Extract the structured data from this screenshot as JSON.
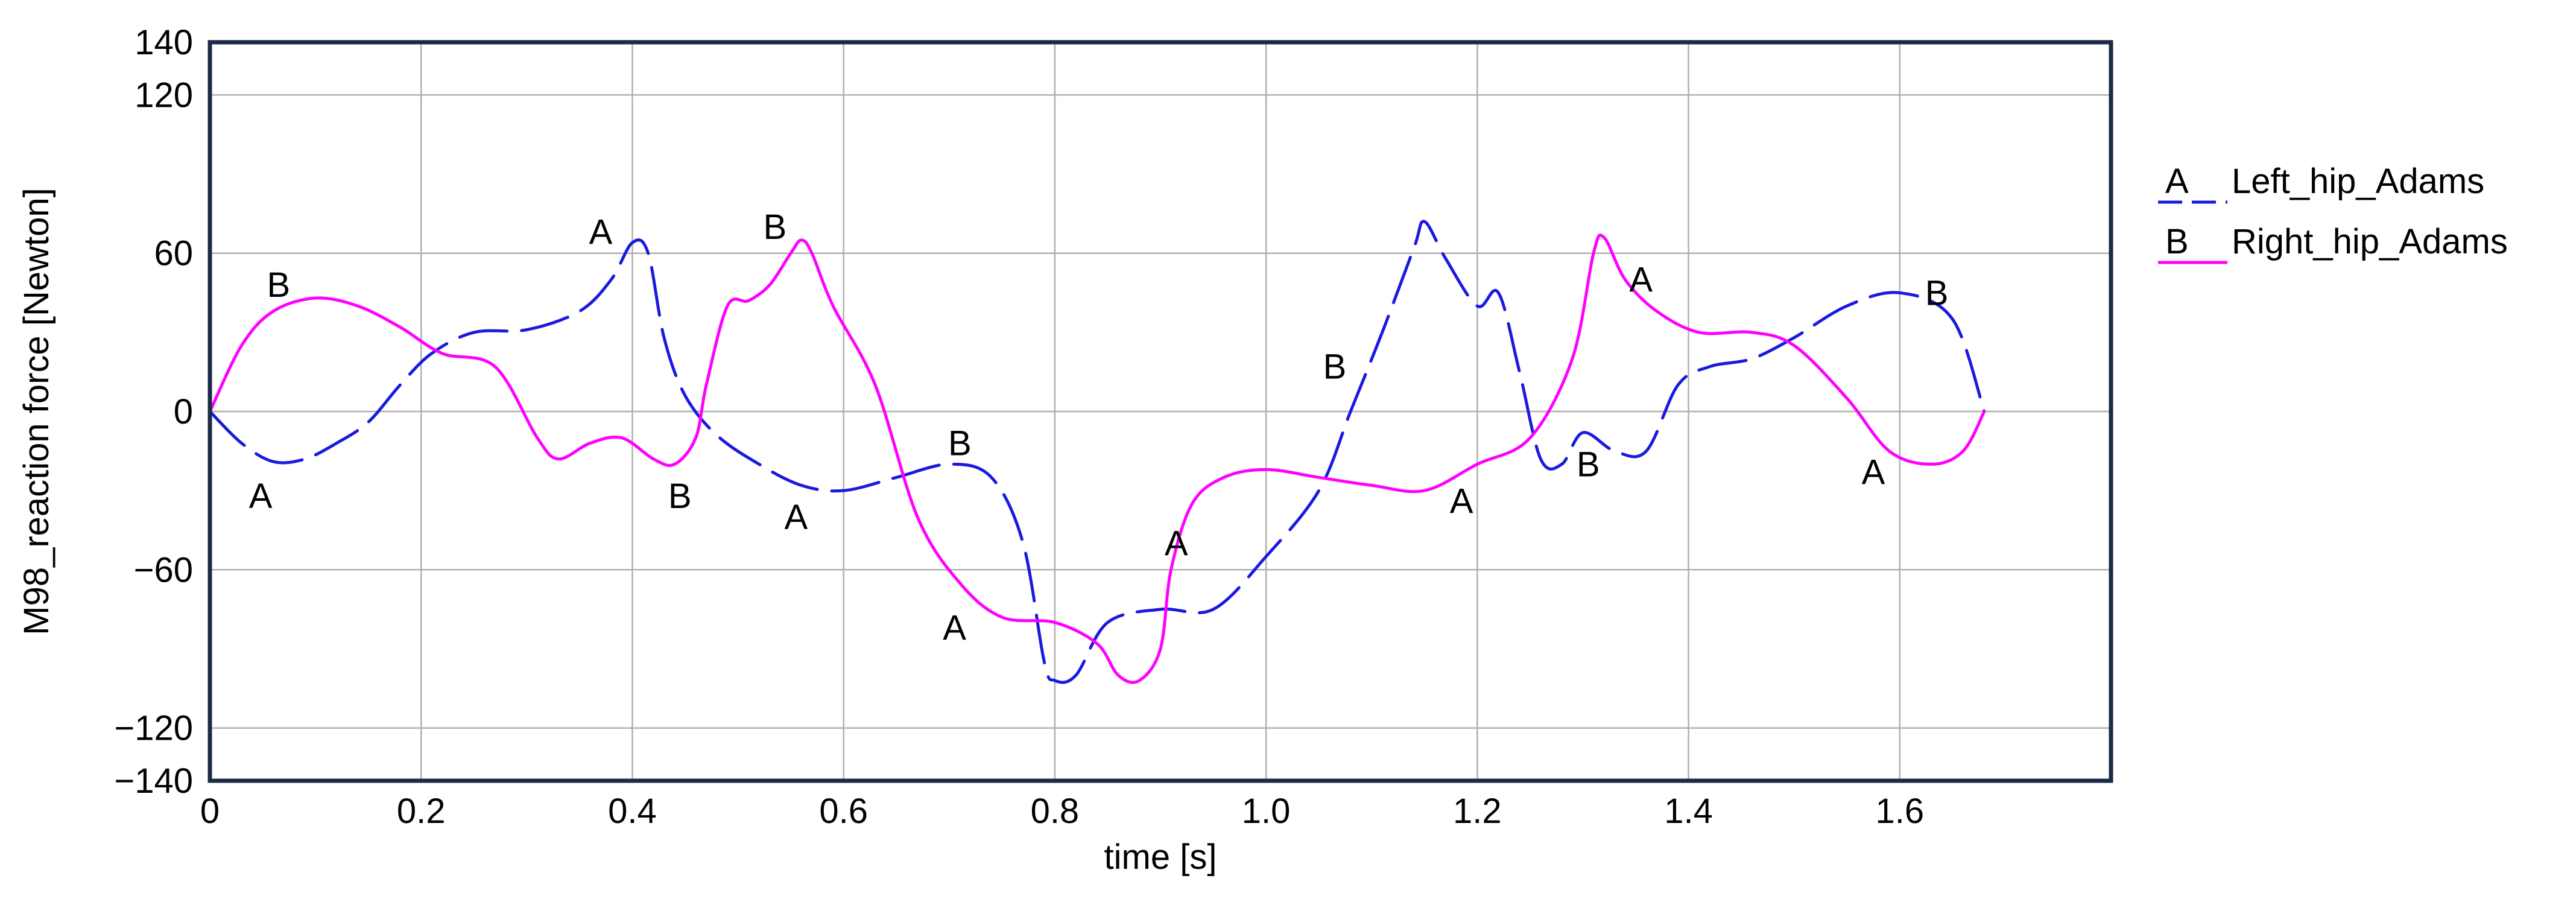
{
  "chart_data": {
    "type": "line",
    "xlabel": "time [s]",
    "ylabel": "M98_reaction force [Newton]",
    "xlim": [
      0,
      1.8
    ],
    "ylim": [
      -140,
      140
    ],
    "x_ticks": [
      0,
      0.2,
      0.4,
      0.6,
      0.8,
      1.0,
      1.2,
      1.4,
      1.6
    ],
    "x_tick_labels": [
      "0",
      "0.2",
      "0.4",
      "0.6",
      "0.8",
      "1.0",
      "1.2",
      "1.4",
      "1.6"
    ],
    "y_ticks": [
      140,
      120,
      60,
      0,
      -60,
      -120,
      -140
    ],
    "y_tick_labels": [
      "140",
      "120",
      "60",
      "0",
      "−60",
      "−120",
      "−140"
    ],
    "grid": true,
    "legend_position": "right",
    "series": [
      {
        "name": "Left_hip_Adams",
        "marker": "A",
        "color": "#1a1adf",
        "dash": "dashed",
        "x": [
          0,
          0.03,
          0.06,
          0.09,
          0.12,
          0.15,
          0.18,
          0.21,
          0.25,
          0.3,
          0.35,
          0.38,
          0.4,
          0.415,
          0.43,
          0.45,
          0.48,
          0.52,
          0.56,
          0.6,
          0.65,
          0.7,
          0.74,
          0.77,
          0.79,
          0.8,
          0.82,
          0.85,
          0.9,
          0.95,
          1.0,
          1.05,
          1.08,
          1.11,
          1.14,
          1.15,
          1.17,
          1.2,
          1.22,
          1.24,
          1.26,
          1.28,
          1.3,
          1.33,
          1.36,
          1.39,
          1.42,
          1.46,
          1.5,
          1.55,
          1.6,
          1.65,
          1.68
        ],
        "y": [
          0,
          -12,
          -19,
          -18,
          -12,
          -4,
          10,
          22,
          30,
          31,
          38,
          50,
          64,
          60,
          28,
          6,
          -9,
          -20,
          -28,
          -30,
          -25,
          -20,
          -25,
          -50,
          -95,
          -102,
          -100,
          -80,
          -75,
          -75,
          -55,
          -30,
          0,
          30,
          62,
          72,
          58,
          40,
          45,
          15,
          -18,
          -20,
          -8,
          -15,
          -15,
          10,
          17,
          20,
          28,
          40,
          45,
          35,
          0
        ]
      },
      {
        "name": "Right_hip_Adams",
        "marker": "B",
        "color": "#ff00ff",
        "dash": "solid",
        "x": [
          0,
          0.03,
          0.06,
          0.1,
          0.14,
          0.18,
          0.22,
          0.27,
          0.31,
          0.33,
          0.36,
          0.39,
          0.42,
          0.44,
          0.46,
          0.47,
          0.49,
          0.51,
          0.53,
          0.55,
          0.56,
          0.57,
          0.59,
          0.63,
          0.67,
          0.71,
          0.75,
          0.8,
          0.84,
          0.86,
          0.88,
          0.9,
          0.91,
          0.93,
          0.96,
          1.0,
          1.05,
          1.1,
          1.15,
          1.2,
          1.25,
          1.29,
          1.31,
          1.32,
          1.34,
          1.37,
          1.41,
          1.46,
          1.5,
          1.55,
          1.59,
          1.63,
          1.66,
          1.68
        ],
        "y": [
          0,
          25,
          38,
          43,
          40,
          32,
          22,
          17,
          -10,
          -18,
          -12,
          -10,
          -18,
          -20,
          -10,
          10,
          40,
          42,
          48,
          60,
          65,
          60,
          40,
          10,
          -40,
          -65,
          -78,
          -80,
          -88,
          -100,
          -102,
          -90,
          -60,
          -35,
          -25,
          -22,
          -25,
          -28,
          -30,
          -20,
          -10,
          20,
          60,
          66,
          50,
          38,
          30,
          30,
          25,
          5,
          -15,
          -20,
          -15,
          0
        ]
      }
    ],
    "annotations": [
      {
        "text": "B",
        "x": 0.065,
        "y": 48
      },
      {
        "text": "A",
        "x": 0.048,
        "y": -32
      },
      {
        "text": "A",
        "x": 0.37,
        "y": 68
      },
      {
        "text": "B",
        "x": 0.445,
        "y": -32
      },
      {
        "text": "B",
        "x": 0.535,
        "y": 70
      },
      {
        "text": "A",
        "x": 0.555,
        "y": -40
      },
      {
        "text": "B",
        "x": 0.71,
        "y": -12
      },
      {
        "text": "A",
        "x": 0.705,
        "y": -82
      },
      {
        "text": "A",
        "x": 0.915,
        "y": -50
      },
      {
        "text": "B",
        "x": 1.065,
        "y": 17
      },
      {
        "text": "A",
        "x": 1.185,
        "y": -34
      },
      {
        "text": "B",
        "x": 1.305,
        "y": -20
      },
      {
        "text": "A",
        "x": 1.355,
        "y": 50
      },
      {
        "text": "A",
        "x": 1.575,
        "y": -23
      },
      {
        "text": "B",
        "x": 1.635,
        "y": 45
      }
    ]
  }
}
